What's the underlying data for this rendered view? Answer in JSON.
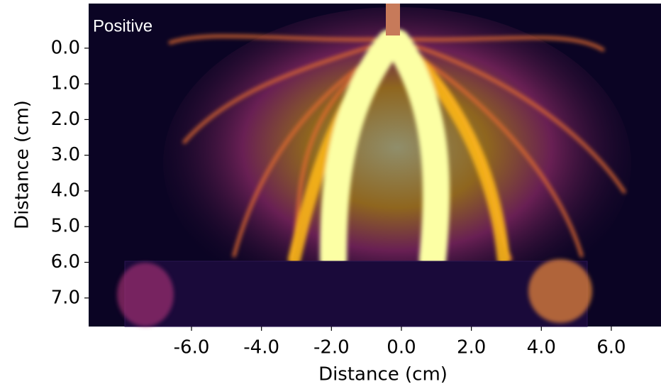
{
  "chart_data": {
    "type": "image",
    "annotation": "Positive",
    "xlabel": "Distance (cm)",
    "ylabel": "Distance (cm)",
    "xlim": [
      -8.94,
      7.38
    ],
    "ylim": [
      7.8,
      -1.25
    ],
    "xticks": [
      {
        "value": -6,
        "label": "-6.0"
      },
      {
        "value": -4,
        "label": "-4.0"
      },
      {
        "value": -2,
        "label": "-2.0"
      },
      {
        "value": 0,
        "label": "0.0"
      },
      {
        "value": 2,
        "label": "2.0"
      },
      {
        "value": 4,
        "label": "4.0"
      },
      {
        "value": 6,
        "label": "6.0"
      }
    ],
    "yticks": [
      {
        "value": 0,
        "label": "0.0"
      },
      {
        "value": 1,
        "label": "1.0"
      },
      {
        "value": 2,
        "label": "2.0"
      },
      {
        "value": 3,
        "label": "3.0"
      },
      {
        "value": 4,
        "label": "4.0"
      },
      {
        "value": 5,
        "label": "5.0"
      },
      {
        "value": 6,
        "label": "6.0"
      },
      {
        "value": 7,
        "label": "7.0"
      }
    ]
  }
}
